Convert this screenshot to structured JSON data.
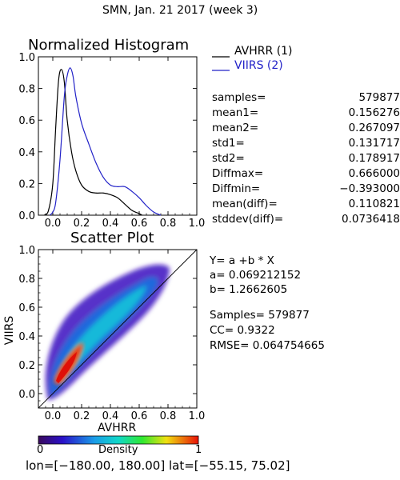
{
  "title": "SMN,  Jan. 21 2017 (week 3)",
  "histogram": {
    "title": "Normalized Histogram",
    "legend": [
      {
        "label": "AVHRR (1)",
        "color": "#000000"
      },
      {
        "label": "VIIRS (2)",
        "color": "#2222c8"
      }
    ],
    "x_ticks": [
      "0.0",
      "0.2",
      "0.4",
      "0.6",
      "0.8",
      "1.0"
    ],
    "y_ticks": [
      "0.0",
      "0.2",
      "0.4",
      "0.6",
      "0.8",
      "1.0"
    ]
  },
  "stats": [
    {
      "label": "samples=",
      "value": "579877"
    },
    {
      "label": "mean1=",
      "value": "0.156276"
    },
    {
      "label": "mean2=",
      "value": "0.267097"
    },
    {
      "label": "std1=",
      "value": "0.131717"
    },
    {
      "label": "std2=",
      "value": "0.178917"
    },
    {
      "label": "Diffmax=",
      "value": "0.666000"
    },
    {
      "label": "Diffmin=",
      "value": "−0.393000"
    },
    {
      "label": "mean(diff)=",
      "value": "0.110821"
    },
    {
      "label": "stddev(diff)=",
      "value": "0.0736418"
    }
  ],
  "scatter": {
    "title": "Scatter Plot",
    "xlabel": "AVHRR",
    "ylabel": "VIIRS",
    "x_ticks": [
      "0.0",
      "0.2",
      "0.4",
      "0.6",
      "0.8",
      "1.0"
    ],
    "y_ticks": [
      "0.0",
      "0.2",
      "0.4",
      "0.6",
      "0.8",
      "1.0"
    ]
  },
  "regression": {
    "equation": "Y= a +b * X",
    "a": "a= 0.069212152",
    "b": "b= 1.2662605",
    "samples": "Samples= 579877",
    "cc": "CC=  0.9322",
    "rmse": "RMSE= 0.064754665"
  },
  "colorbar": {
    "label": "Density",
    "min": "0",
    "max": "1"
  },
  "footer": "lon=[−180.00, 180.00] lat=[−55.15, 75.02]",
  "chart_data": [
    {
      "type": "line",
      "title": "Normalized Histogram",
      "xlim": [
        -0.1,
        1.0
      ],
      "ylim": [
        0.0,
        1.0
      ],
      "series": [
        {
          "name": "AVHRR (1)",
          "color": "#000000",
          "x": [
            -0.06,
            -0.03,
            0.0,
            0.02,
            0.04,
            0.06,
            0.08,
            0.1,
            0.13,
            0.16,
            0.2,
            0.25,
            0.3,
            0.35,
            0.4,
            0.45,
            0.5,
            0.55,
            0.6,
            0.62
          ],
          "y": [
            0.0,
            0.03,
            0.2,
            0.55,
            0.85,
            0.92,
            0.84,
            0.6,
            0.4,
            0.28,
            0.19,
            0.15,
            0.14,
            0.14,
            0.13,
            0.11,
            0.07,
            0.03,
            0.01,
            0.0
          ]
        },
        {
          "name": "VIIRS (2)",
          "color": "#2222c8",
          "x": [
            -0.02,
            0.0,
            0.02,
            0.05,
            0.08,
            0.1,
            0.12,
            0.14,
            0.16,
            0.2,
            0.25,
            0.3,
            0.35,
            0.4,
            0.45,
            0.5,
            0.55,
            0.6,
            0.65,
            0.7,
            0.75
          ],
          "y": [
            0.0,
            0.02,
            0.08,
            0.35,
            0.75,
            0.88,
            0.93,
            0.88,
            0.75,
            0.58,
            0.45,
            0.33,
            0.24,
            0.19,
            0.18,
            0.18,
            0.15,
            0.11,
            0.06,
            0.02,
            0.0
          ]
        }
      ]
    },
    {
      "type": "heatmap",
      "title": "Scatter Plot",
      "xlabel": "AVHRR",
      "ylabel": "VIIRS",
      "xlim": [
        -0.1,
        1.0
      ],
      "ylim": [
        -0.1,
        1.0
      ],
      "regression": {
        "a": 0.069212152,
        "b": 1.2662605
      },
      "reference_line": "1:1",
      "colorbar": {
        "label": "Density",
        "range": [
          0,
          1
        ]
      },
      "density_ridge": [
        {
          "x": 0.0,
          "y": 0.05,
          "density": 0.6
        },
        {
          "x": 0.05,
          "y": 0.14,
          "density": 1.0
        },
        {
          "x": 0.1,
          "y": 0.22,
          "density": 0.95
        },
        {
          "x": 0.15,
          "y": 0.29,
          "density": 0.7
        },
        {
          "x": 0.2,
          "y": 0.36,
          "density": 0.45
        },
        {
          "x": 0.3,
          "y": 0.48,
          "density": 0.3
        },
        {
          "x": 0.4,
          "y": 0.6,
          "density": 0.3
        },
        {
          "x": 0.5,
          "y": 0.68,
          "density": 0.28
        },
        {
          "x": 0.55,
          "y": 0.74,
          "density": 0.15
        }
      ]
    }
  ]
}
